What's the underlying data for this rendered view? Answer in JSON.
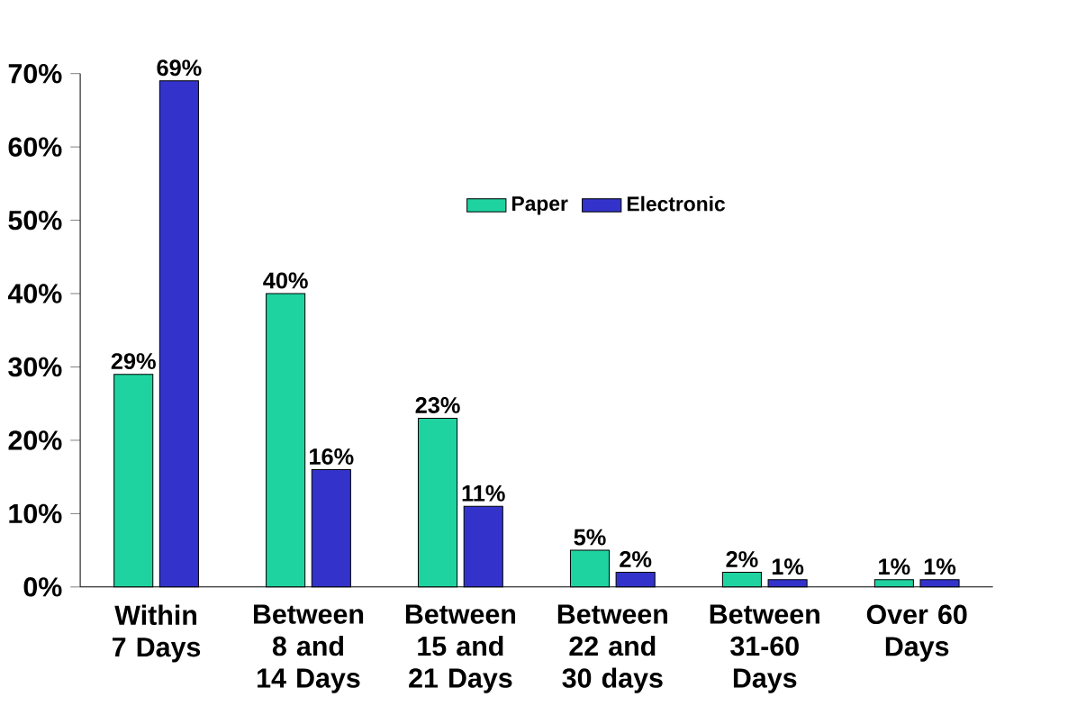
{
  "chart_data": {
    "type": "bar",
    "categories": [
      "Within 7 Days",
      "Between 8 and 14 Days",
      "Between 15 and 21 Days",
      "Between 22 and 30 days",
      "Between 31-60 Days",
      "Over 60 Days"
    ],
    "series": [
      {
        "name": "Paper",
        "color": "#1fd3a0",
        "values": [
          29,
          40,
          23,
          5,
          2,
          1
        ],
        "value_labels": [
          "29%",
          "40%",
          "23%",
          "5%",
          "2%",
          "1%"
        ]
      },
      {
        "name": "Electronic",
        "color": "#3333cc",
        "values": [
          69,
          16,
          11,
          2,
          1,
          1
        ],
        "value_labels": [
          "69%",
          "16%",
          "11%",
          "2%",
          "1%",
          "1%"
        ]
      }
    ],
    "ylim": [
      0,
      70
    ],
    "yticks": [
      {
        "value": 0,
        "label": "0%"
      },
      {
        "value": 10,
        "label": "10%"
      },
      {
        "value": 20,
        "label": "20%"
      },
      {
        "value": 30,
        "label": "30%"
      },
      {
        "value": 40,
        "label": "40%"
      },
      {
        "value": 50,
        "label": "50%"
      },
      {
        "value": 60,
        "label": "60%"
      },
      {
        "value": 70,
        "label": "70%"
      }
    ],
    "grid": false,
    "legend": "top right"
  }
}
